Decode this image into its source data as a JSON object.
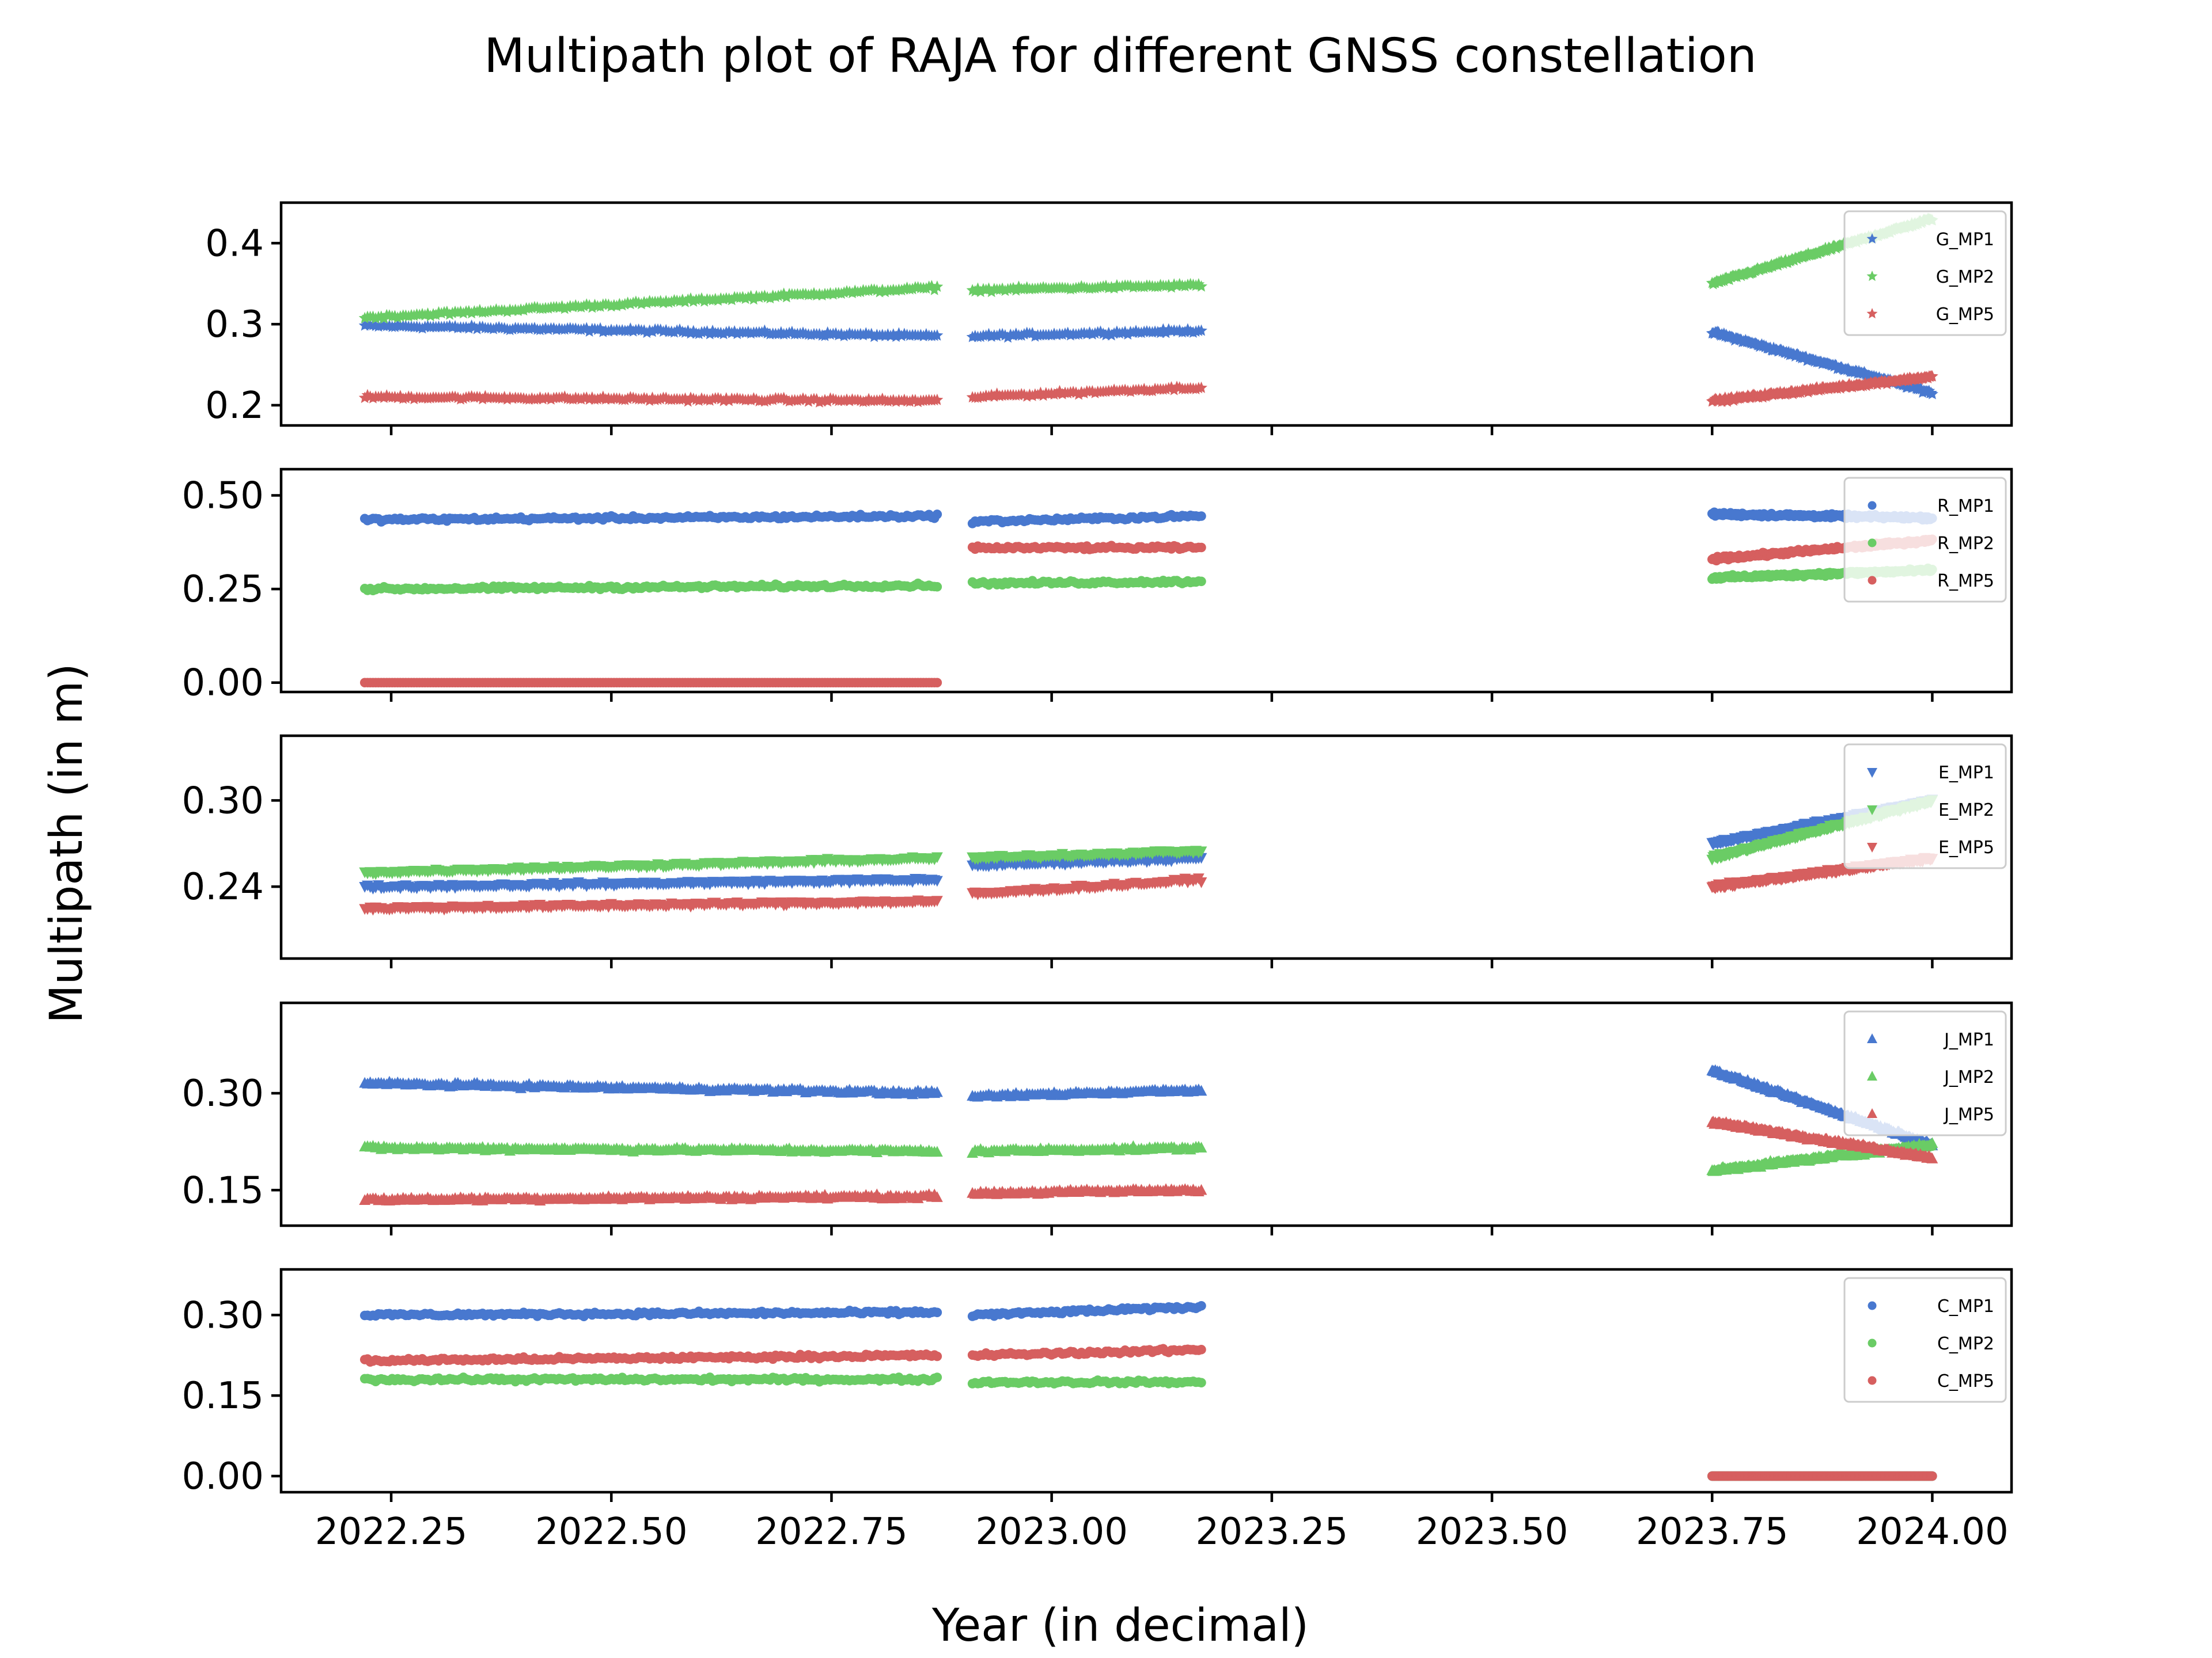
{
  "chart_data": {
    "type": "scatter",
    "title": "Multipath plot of RAJA for different GNSS constellation",
    "xlabel": "Year (in decimal)",
    "ylabel": "Multipath (in m)",
    "xlim": [
      2022.125,
      2024.09
    ],
    "xticks": [
      2022.25,
      2022.5,
      2022.75,
      2023.0,
      2023.25,
      2023.5,
      2023.75,
      2024.0
    ],
    "xtick_labels": [
      "2022.25",
      "2022.50",
      "2022.75",
      "2023.00",
      "2023.25",
      "2023.50",
      "2023.75",
      "2024.00"
    ],
    "grid": false,
    "legend_position": "top-right",
    "colors": {
      "MP1": "#4878cf",
      "MP2": "#6acc65",
      "MP5": "#d65f5f"
    },
    "segments": [
      [
        2022.22,
        2022.87
      ],
      [
        2022.91,
        2023.17
      ],
      [
        2023.75,
        2024.0
      ]
    ],
    "panels": [
      {
        "constellation": "G",
        "marker": "star",
        "ylim": [
          0.175,
          0.45
        ],
        "yticks": [
          0.2,
          0.3,
          0.4
        ],
        "ytick_labels": [
          "0.2",
          "0.3",
          "0.4"
        ],
        "series": [
          {
            "name": "G_MP1",
            "key": "MP1",
            "segments": [
              [
                0.298,
                0.285
              ],
              [
                0.285,
                0.292
              ],
              [
                0.29,
                0.215
              ]
            ]
          },
          {
            "name": "G_MP2",
            "key": "MP2",
            "segments": [
              [
                0.308,
                0.345
              ],
              [
                0.342,
                0.348
              ],
              [
                0.35,
                0.43
              ]
            ]
          },
          {
            "name": "G_MP5",
            "key": "MP5",
            "segments": [
              [
                0.21,
                0.205
              ],
              [
                0.21,
                0.222
              ],
              [
                0.205,
                0.235
              ]
            ]
          }
        ]
      },
      {
        "constellation": "R",
        "marker": "circle",
        "ylim": [
          -0.025,
          0.57
        ],
        "yticks": [
          0.0,
          0.25,
          0.5
        ],
        "ytick_labels": [
          "0.00",
          "0.25",
          "0.50"
        ],
        "series": [
          {
            "name": "R_MP1",
            "key": "MP1",
            "segments": [
              [
                0.435,
                0.445
              ],
              [
                0.43,
                0.445
              ],
              [
                0.45,
                0.44
              ]
            ]
          },
          {
            "name": "R_MP2",
            "key": "MP2",
            "segments": [
              [
                0.25,
                0.26
              ],
              [
                0.265,
                0.27
              ],
              [
                0.28,
                0.3
              ]
            ]
          },
          {
            "name": "R_MP5",
            "key": "MP5",
            "segments": [
              [
                0.0,
                0.0
              ],
              [
                0.36,
                0.36
              ],
              [
                0.33,
                0.38
              ]
            ]
          }
        ]
      },
      {
        "constellation": "E",
        "marker": "triangle-down",
        "ylim": [
          0.19,
          0.345
        ],
        "yticks": [
          0.24,
          0.3
        ],
        "ytick_labels": [
          "0.24",
          "0.30"
        ],
        "series": [
          {
            "name": "E_MP1",
            "key": "MP1",
            "segments": [
              [
                0.24,
                0.245
              ],
              [
                0.255,
                0.26
              ],
              [
                0.27,
                0.3
              ]
            ]
          },
          {
            "name": "E_MP2",
            "key": "MP2",
            "segments": [
              [
                0.25,
                0.26
              ],
              [
                0.26,
                0.265
              ],
              [
                0.26,
                0.3
              ]
            ]
          },
          {
            "name": "E_MP5",
            "key": "MP5",
            "segments": [
              [
                0.225,
                0.23
              ],
              [
                0.235,
                0.245
              ],
              [
                0.24,
                0.26
              ]
            ]
          }
        ]
      },
      {
        "constellation": "J",
        "marker": "triangle-up",
        "ylim": [
          0.095,
          0.44
        ],
        "yticks": [
          0.15,
          0.3
        ],
        "ytick_labels": [
          "0.15",
          "0.30"
        ],
        "series": [
          {
            "name": "J_MP1",
            "key": "MP1",
            "segments": [
              [
                0.315,
                0.3
              ],
              [
                0.295,
                0.305
              ],
              [
                0.335,
                0.22
              ]
            ]
          },
          {
            "name": "J_MP2",
            "key": "MP2",
            "segments": [
              [
                0.215,
                0.21
              ],
              [
                0.21,
                0.215
              ],
              [
                0.18,
                0.22
              ]
            ]
          },
          {
            "name": "J_MP5",
            "key": "MP5",
            "segments": [
              [
                0.135,
                0.14
              ],
              [
                0.145,
                0.15
              ],
              [
                0.255,
                0.2
              ]
            ]
          }
        ]
      },
      {
        "constellation": "C",
        "marker": "circle",
        "ylim": [
          -0.03,
          0.385
        ],
        "yticks": [
          0.0,
          0.15,
          0.3
        ],
        "ytick_labels": [
          "0.00",
          "0.15",
          "0.30"
        ],
        "series": [
          {
            "name": "C_MP1",
            "key": "MP1",
            "segments": [
              [
                0.3,
                0.305
              ],
              [
                0.3,
                0.315
              ],
              [
                0.0,
                0.0
              ]
            ]
          },
          {
            "name": "C_MP2",
            "key": "MP2",
            "segments": [
              [
                0.18,
                0.18
              ],
              [
                0.175,
                0.175
              ],
              [
                0.0,
                0.0
              ]
            ]
          },
          {
            "name": "C_MP5",
            "key": "MP5",
            "segments": [
              [
                0.215,
                0.225
              ],
              [
                0.225,
                0.235
              ],
              [
                0.0,
                0.0
              ]
            ]
          }
        ]
      }
    ]
  }
}
